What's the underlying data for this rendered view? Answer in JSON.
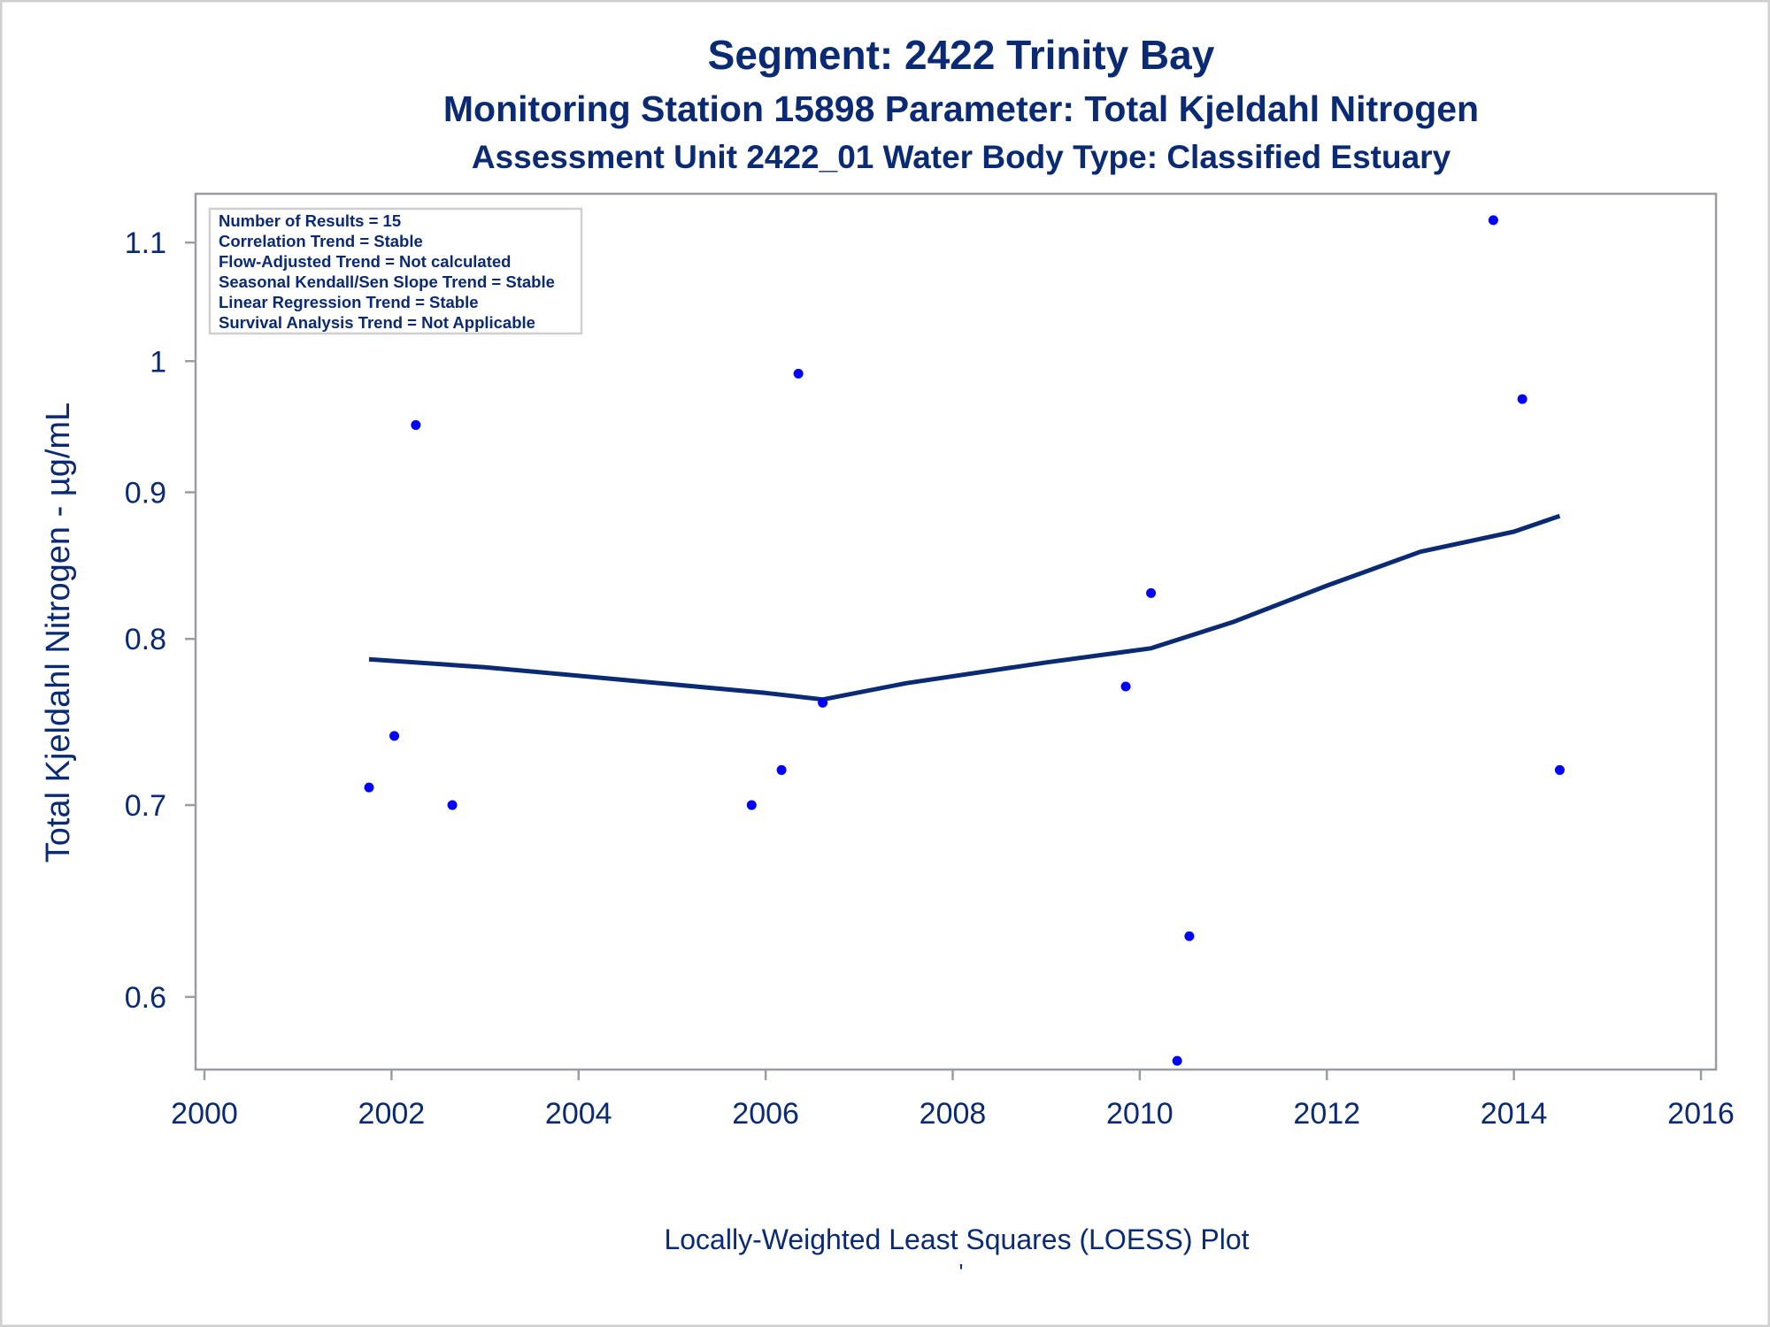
{
  "titles": {
    "line1": "Segment: 2422  Trinity Bay",
    "line2": "Monitoring Station 15898 Parameter: Total Kjeldahl Nitrogen",
    "line3": "Assessment Unit 2422_01   Water Body Type: Classified Estuary"
  },
  "footnote": "Locally-Weighted Least Squares (LOESS) Plot",
  "footnote2": "'",
  "stats_box": [
    "Number of Results = 15",
    "Correlation Trend = Stable",
    "Flow-Adjusted Trend = Not calculated",
    "Seasonal Kendall/Sen Slope Trend = Stable",
    "Linear Regression Trend = Stable",
    "Survival Analysis Trend = Not Applicable"
  ],
  "colors": {
    "text": "#0a2a73",
    "points": "#0000ff",
    "loess": "#0a2a73",
    "frame": "#9a9ea4"
  },
  "chart_data": {
    "type": "scatter",
    "xlabel": "",
    "ylabel": "Total Kjeldahl Nitrogen -  µg/mL",
    "xlim": [
      2000,
      2016
    ],
    "ylim": [
      0.566,
      1.144
    ],
    "y_scale": "log",
    "grid": false,
    "x_ticks": [
      "2000",
      "2002",
      "2004",
      "2006",
      "2008",
      "2010",
      "2012",
      "2014",
      "2016"
    ],
    "y_ticks": [
      "0.6",
      "0.7",
      "0.8",
      "0.9",
      "1",
      "1.1"
    ],
    "points": [
      [
        2001.76,
        0.71
      ],
      [
        2002.03,
        0.74
      ],
      [
        2002.26,
        0.95
      ],
      [
        2002.65,
        0.7
      ],
      [
        2005.85,
        0.7
      ],
      [
        2006.17,
        0.72
      ],
      [
        2006.35,
        0.99
      ],
      [
        2006.61,
        0.76
      ],
      [
        2009.85,
        0.77
      ],
      [
        2010.12,
        0.83
      ],
      [
        2010.4,
        0.57
      ],
      [
        2010.53,
        0.63
      ],
      [
        2013.78,
        1.12
      ],
      [
        2014.09,
        0.97
      ],
      [
        2014.49,
        0.72
      ]
    ],
    "loess": [
      [
        2001.76,
        0.787
      ],
      [
        2003.0,
        0.782
      ],
      [
        2004.5,
        0.774
      ],
      [
        2006.0,
        0.766
      ],
      [
        2006.61,
        0.762
      ],
      [
        2007.5,
        0.772
      ],
      [
        2009.0,
        0.785
      ],
      [
        2010.12,
        0.794
      ],
      [
        2011.0,
        0.811
      ],
      [
        2012.0,
        0.835
      ],
      [
        2013.0,
        0.858
      ],
      [
        2014.0,
        0.872
      ],
      [
        2014.49,
        0.883
      ]
    ]
  }
}
